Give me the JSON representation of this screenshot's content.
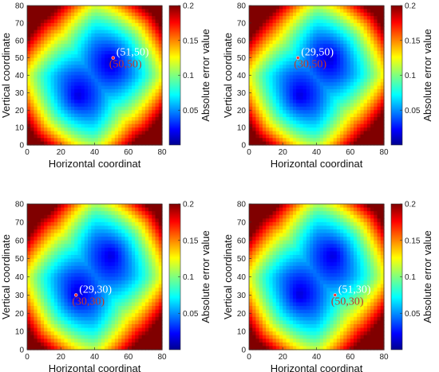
{
  "chart_data": [
    {
      "type": "heatmap",
      "xlabel": "Horizontal coordinat",
      "ylabel": "Vertical coordinate",
      "colorbar_label": "Absolute error value",
      "xlim": [
        0,
        80
      ],
      "ylim": [
        0,
        80
      ],
      "x_ticks": [
        "0",
        "20",
        "40",
        "60",
        "80"
      ],
      "y_ticks": [
        "0",
        "10",
        "20",
        "30",
        "40",
        "50",
        "60",
        "70",
        "80"
      ],
      "colorbar_range": [
        0,
        0.2
      ],
      "colorbar_ticks": [
        "0.05",
        "0.1",
        "0.15",
        "0.2"
      ],
      "estimated_point": {
        "x": 51,
        "y": 50,
        "label": "(51,50)"
      },
      "true_point": {
        "x": 50,
        "y": 50,
        "label": "(50,50)"
      },
      "minima": [
        {
          "x": 30,
          "y": 28
        },
        {
          "x": 50,
          "y": 48
        }
      ]
    },
    {
      "type": "heatmap",
      "xlabel": "Horizontal coordinat",
      "ylabel": "Vertical coordinate",
      "colorbar_label": "Absolute error value",
      "xlim": [
        0,
        80
      ],
      "ylim": [
        0,
        80
      ],
      "x_ticks": [
        "0",
        "20",
        "40",
        "60",
        "80"
      ],
      "y_ticks": [
        "0",
        "10",
        "20",
        "30",
        "40",
        "50",
        "60",
        "70",
        "80"
      ],
      "colorbar_range": [
        0,
        0.2
      ],
      "colorbar_ticks": [
        "0.05",
        "0.1",
        "0.15",
        "0.2"
      ],
      "estimated_point": {
        "x": 29,
        "y": 50,
        "label": "(29,50)"
      },
      "true_point": {
        "x": 30,
        "y": 50,
        "label": "(30,50)"
      },
      "minima": [
        {
          "x": 30,
          "y": 28
        },
        {
          "x": 48,
          "y": 50
        }
      ]
    },
    {
      "type": "heatmap",
      "xlabel": "Horizontal coordinat",
      "ylabel": "Vertical coordinate",
      "colorbar_label": "Absolute error value",
      "xlim": [
        0,
        80
      ],
      "ylim": [
        0,
        80
      ],
      "x_ticks": [
        "0",
        "20",
        "40",
        "60",
        "80"
      ],
      "y_ticks": [
        "0",
        "10",
        "20",
        "30",
        "40",
        "50",
        "60",
        "70",
        "80"
      ],
      "colorbar_range": [
        0,
        0.2
      ],
      "colorbar_ticks": [
        "0.05",
        "0.1",
        "0.15",
        "0.2"
      ],
      "estimated_point": {
        "x": 29,
        "y": 30,
        "label": "(29,30)"
      },
      "true_point": {
        "x": 30,
        "y": 30,
        "label": "(30,30)"
      },
      "minima": [
        {
          "x": 50,
          "y": 52
        },
        {
          "x": 30,
          "y": 30
        }
      ]
    },
    {
      "type": "heatmap",
      "xlabel": "Horizontal coordinat",
      "ylabel": "Vertical coordinate",
      "colorbar_label": "Absolute error value",
      "xlim": [
        0,
        80
      ],
      "ylim": [
        0,
        80
      ],
      "x_ticks": [
        "0",
        "20",
        "40",
        "60",
        "80"
      ],
      "y_ticks": [
        "0",
        "10",
        "20",
        "30",
        "40",
        "50",
        "60",
        "70",
        "80"
      ],
      "colorbar_range": [
        0,
        0.2
      ],
      "colorbar_ticks": [
        "0.05",
        "0.1",
        "0.15",
        "0.2"
      ],
      "estimated_point": {
        "x": 51,
        "y": 30,
        "label": "(51,30)"
      },
      "true_point": {
        "x": 50,
        "y": 30,
        "label": "(50,30)"
      },
      "minima": [
        {
          "x": 50,
          "y": 52
        },
        {
          "x": 30,
          "y": 30
        }
      ]
    }
  ],
  "colors": {
    "estimated_label": "#ffffff",
    "true_label": "#c0392b",
    "marker": "#ff3333"
  }
}
